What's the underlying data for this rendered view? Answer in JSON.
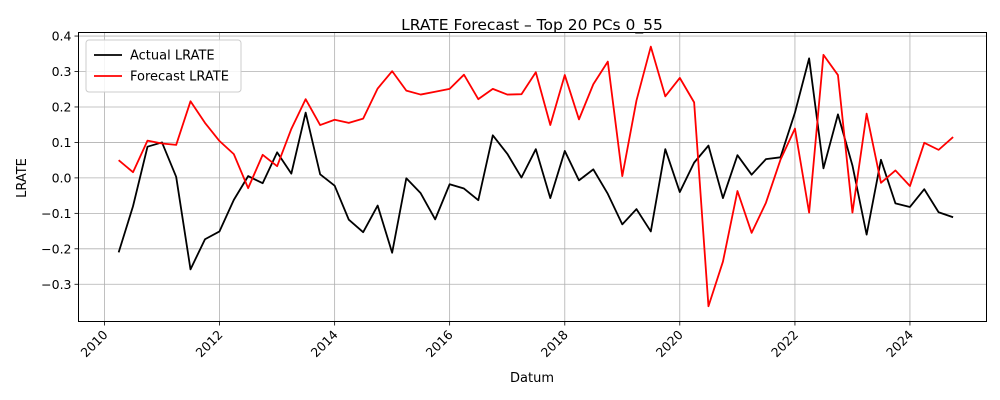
{
  "chart_data": {
    "type": "line",
    "title": "LRATE Forecast – Top 20 PCs 0_55",
    "xlabel": "Datum",
    "ylabel": "LRATE",
    "x_ticks": [
      "2010",
      "2012",
      "2014",
      "2016",
      "2018",
      "2020",
      "2022",
      "2024"
    ],
    "y_ticks": [
      "−0.3",
      "−0.2",
      "−0.1",
      "0.0",
      "0.1",
      "0.2",
      "0.3",
      "0.4"
    ],
    "xlim": [
      "2009-07-20",
      "2025-05-01"
    ],
    "ylim": [
      -0.405,
      0.41
    ],
    "grid": true,
    "legend": "top-left",
    "colors": {
      "actual": "#000000",
      "forecast": "#ff0000"
    },
    "x": [
      "2010-04-01",
      "2010-07-01",
      "2010-10-01",
      "2011-01-01",
      "2011-04-01",
      "2011-07-01",
      "2011-10-01",
      "2012-01-01",
      "2012-04-01",
      "2012-07-01",
      "2012-10-01",
      "2013-01-01",
      "2013-04-01",
      "2013-07-01",
      "2013-10-01",
      "2014-01-01",
      "2014-04-01",
      "2014-07-01",
      "2014-10-01",
      "2015-01-01",
      "2015-04-01",
      "2015-07-01",
      "2015-10-01",
      "2016-01-01",
      "2016-04-01",
      "2016-07-01",
      "2016-10-01",
      "2017-01-01",
      "2017-04-01",
      "2017-07-01",
      "2017-10-01",
      "2018-01-01",
      "2018-04-01",
      "2018-07-01",
      "2018-10-01",
      "2019-01-01",
      "2019-04-01",
      "2019-07-01",
      "2019-10-01",
      "2020-01-01",
      "2020-04-01",
      "2020-07-01",
      "2020-10-01",
      "2021-01-01",
      "2021-04-01",
      "2021-07-01",
      "2021-10-01",
      "2022-01-01",
      "2022-04-01",
      "2022-07-01",
      "2022-10-01",
      "2023-01-01",
      "2023-04-01",
      "2023-07-01",
      "2023-10-01",
      "2024-01-01",
      "2024-04-01",
      "2024-07-01",
      "2024-10-01"
    ],
    "series": [
      {
        "name": "Actual LRATE",
        "color": "#000000",
        "values": [
          -0.21,
          -0.08,
          0.088,
          0.1,
          0.003,
          -0.258,
          -0.173,
          -0.151,
          -0.062,
          0.005,
          -0.015,
          0.072,
          0.012,
          0.184,
          0.01,
          -0.022,
          -0.118,
          -0.153,
          -0.078,
          -0.211,
          -0.001,
          -0.043,
          -0.117,
          -0.018,
          -0.03,
          -0.063,
          0.12,
          0.068,
          0.001,
          0.081,
          -0.057,
          0.076,
          -0.007,
          0.024,
          -0.045,
          -0.131,
          -0.088,
          -0.151,
          0.081,
          -0.04,
          0.043,
          0.091,
          -0.057,
          0.064,
          0.009,
          0.053,
          0.058,
          0.184,
          0.337,
          0.027,
          0.179,
          0.035,
          -0.16,
          0.051,
          -0.072,
          -0.082,
          -0.032,
          -0.097,
          -0.111
        ]
      },
      {
        "name": "Forecast LRATE",
        "color": "#ff0000",
        "values": [
          0.05,
          0.016,
          0.105,
          0.097,
          0.093,
          0.216,
          0.155,
          0.104,
          0.067,
          -0.029,
          0.065,
          0.033,
          0.138,
          0.222,
          0.149,
          0.164,
          0.155,
          0.167,
          0.252,
          0.301,
          0.246,
          0.235,
          0.243,
          0.251,
          0.291,
          0.222,
          0.251,
          0.235,
          0.236,
          0.298,
          0.149,
          0.29,
          0.165,
          0.264,
          0.328,
          0.005,
          0.218,
          0.37,
          0.23,
          0.282,
          0.213,
          -0.362,
          -0.236,
          -0.037,
          -0.155,
          -0.07,
          0.051,
          0.139,
          -0.098,
          0.347,
          0.29,
          -0.098,
          0.181,
          -0.014,
          0.021,
          -0.023,
          0.099,
          0.079,
          0.115
        ]
      }
    ]
  }
}
